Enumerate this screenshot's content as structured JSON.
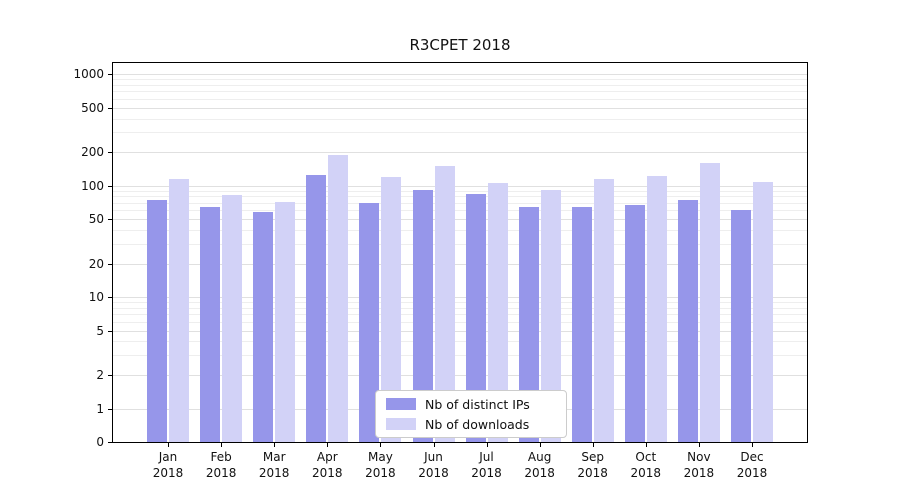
{
  "title": "R3CPET 2018",
  "chart_data": {
    "type": "bar",
    "title": "R3CPET 2018",
    "categories": [
      "Jan",
      "Feb",
      "Mar",
      "Apr",
      "May",
      "Jun",
      "Jul",
      "Aug",
      "Sep",
      "Oct",
      "Nov",
      "Dec"
    ],
    "year_label": "2018",
    "series": [
      {
        "name": "Nb of distinct IPs",
        "color": "#9696ea",
        "values": [
          75,
          65,
          58,
          125,
          70,
          92,
          85,
          65,
          65,
          67,
          75,
          61
        ]
      },
      {
        "name": "Nb of downloads",
        "color": "#d2d2f7",
        "values": [
          115,
          82,
          72,
          190,
          120,
          150,
          105,
          92,
          115,
          122,
          160,
          108
        ]
      }
    ],
    "yscale": "symlog",
    "yticks": [
      0,
      1,
      2,
      5,
      10,
      20,
      50,
      100,
      200,
      500,
      1000
    ],
    "ylim": [
      0,
      1400
    ],
    "grid": "horizontal",
    "legend_position": "lower-center",
    "legend_entries": [
      "Nb of distinct IPs",
      "Nb of downloads"
    ]
  },
  "colors": {
    "grid_major": "#e0e0e0",
    "grid_minor": "#eeeeee",
    "axis": "#000000",
    "background": "#ffffff"
  }
}
